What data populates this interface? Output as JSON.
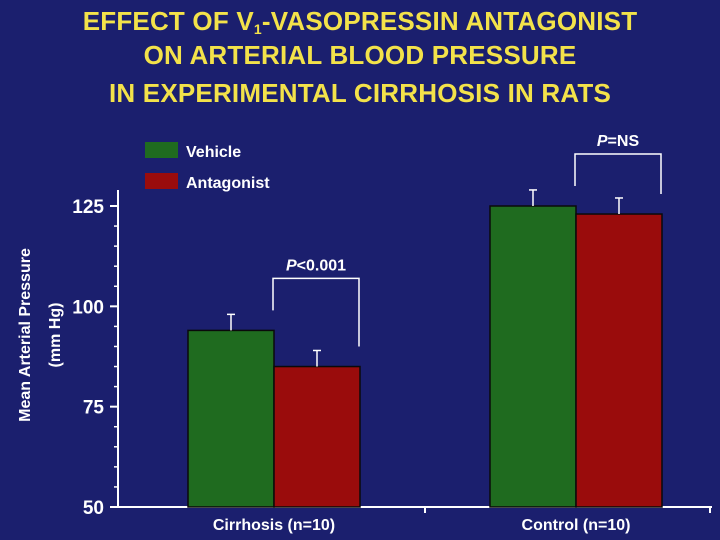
{
  "chart_data": {
    "type": "bar",
    "title_lines": [
      {
        "pre": "EFFECT OF V",
        "sub": "1",
        "post": "-VASOPRESSIN ANTAGONIST"
      },
      {
        "pre": "ON ARTERIAL BLOOD PRESSURE",
        "sub": "",
        "post": ""
      },
      {
        "pre": "IN EXPERIMENTAL CIRRHOSIS IN RATS",
        "sub": "",
        "post": ""
      }
    ],
    "ylabel_lines": [
      "Mean Arterial Pressure",
      "(mm Hg)"
    ],
    "ylim": [
      50,
      125
    ],
    "yticks": [
      50,
      75,
      100,
      125
    ],
    "categories": [
      "Cirrhosis (n=10)",
      "Control (n=10)"
    ],
    "series": [
      {
        "name": "Vehicle",
        "color": "#1f6b1f",
        "values": [
          94,
          125
        ],
        "errors": [
          4,
          4
        ]
      },
      {
        "name": "Antagonist",
        "color": "#9a0c0c",
        "values": [
          85,
          123
        ],
        "errors": [
          4,
          4
        ]
      }
    ],
    "annotations": [
      {
        "category_index": 0,
        "p_letter": "P",
        "p_rest": "<0.001"
      },
      {
        "category_index": 1,
        "p_letter": "P",
        "p_rest": "=NS"
      }
    ],
    "legend": "top-left",
    "grid": false
  }
}
